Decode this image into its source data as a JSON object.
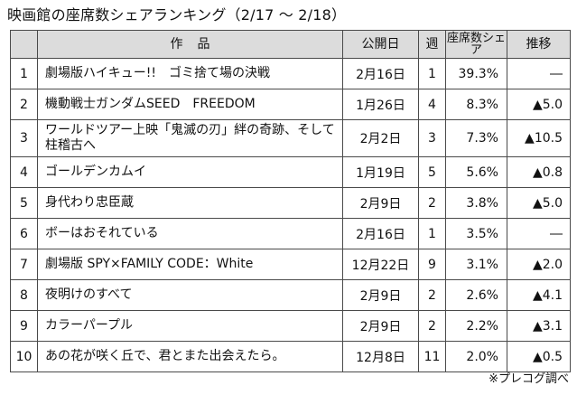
{
  "title": "映画館の座席数シェアランキング（2/17 ～ 2/18）",
  "headers": {
    "title": "作品",
    "release": "公開日",
    "week": "週",
    "share": "座席数シェア",
    "change": "推移"
  },
  "rows": [
    {
      "rank": "1",
      "title": "劇場版ハイキュー!!　ゴミ捨て場の決戦",
      "release": "2月16日",
      "week": "1",
      "share": "39.3%",
      "change": "―"
    },
    {
      "rank": "2",
      "title": "機動戦士ガンダムSEED　FREEDOM",
      "release": "1月26日",
      "week": "4",
      "share": "8.3%",
      "change": "▲5.0"
    },
    {
      "rank": "3",
      "title": "ワールドツアー上映「鬼滅の刃」絆の奇跡、そして柱稽古へ",
      "release": "2月2日",
      "week": "3",
      "share": "7.3%",
      "change": "▲10.5"
    },
    {
      "rank": "4",
      "title": "ゴールデンカムイ",
      "release": "1月19日",
      "week": "5",
      "share": "5.6%",
      "change": "▲0.8"
    },
    {
      "rank": "5",
      "title": "身代わり忠臣蔵",
      "release": "2月9日",
      "week": "2",
      "share": "3.8%",
      "change": "▲5.0"
    },
    {
      "rank": "6",
      "title": "ボーはおそれている",
      "release": "2月16日",
      "week": "1",
      "share": "3.5%",
      "change": "―"
    },
    {
      "rank": "7",
      "title": "劇場版 SPY×FAMILY CODE：White",
      "release": "12月22日",
      "week": "9",
      "share": "3.1%",
      "change": "▲2.0"
    },
    {
      "rank": "8",
      "title": "夜明けのすべて",
      "release": "2月9日",
      "week": "2",
      "share": "2.6%",
      "change": "▲4.1"
    },
    {
      "rank": "9",
      "title": "カラーパープル",
      "release": "2月9日",
      "week": "2",
      "share": "2.2%",
      "change": "▲3.1"
    },
    {
      "rank": "10",
      "title": "あの花が咲く丘で、君とまた出会えたら。",
      "release": "12月8日",
      "week": "11",
      "share": "2.0%",
      "change": "▲0.5"
    }
  ],
  "note": "※プレコグ調べ"
}
